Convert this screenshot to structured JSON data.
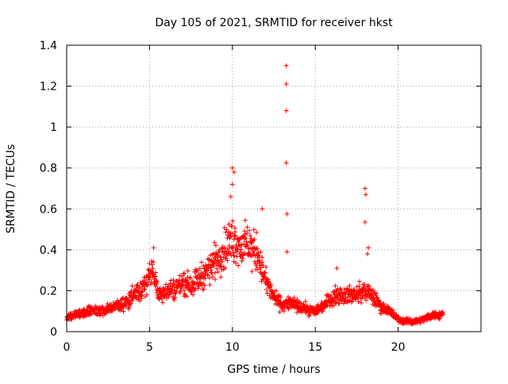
{
  "chart_data": {
    "type": "scatter",
    "title": "Day 105 of 2021, SRMTID for receiver hkst",
    "xlabel": "GPS time / hours",
    "ylabel": "SRMTID / TECUs",
    "xlim": [
      0,
      25
    ],
    "ylim": [
      0,
      1.4
    ],
    "xticks": [
      0,
      5,
      10,
      15,
      20
    ],
    "xtick_labels": [
      "0",
      "5",
      "10",
      "15",
      "20"
    ],
    "yticks": [
      0,
      0.2,
      0.4,
      0.6,
      0.8,
      1,
      1.2,
      1.4
    ],
    "ytick_labels": [
      "0",
      "0.2",
      "0.4",
      "0.6",
      "0.8",
      "1",
      "1.2",
      "1.4"
    ],
    "grid": true,
    "marker": "plus",
    "color": "#ff0000",
    "series": [
      {
        "name": "SRMTID",
        "envelope": [
          [
            0.0,
            0.07
          ],
          [
            0.5,
            0.08
          ],
          [
            1.0,
            0.09
          ],
          [
            1.5,
            0.1
          ],
          [
            2.0,
            0.1
          ],
          [
            2.5,
            0.11
          ],
          [
            3.0,
            0.13
          ],
          [
            3.5,
            0.14
          ],
          [
            4.0,
            0.17
          ],
          [
            4.5,
            0.2
          ],
          [
            5.0,
            0.28
          ],
          [
            5.2,
            0.3
          ],
          [
            5.5,
            0.19
          ],
          [
            6.0,
            0.2
          ],
          [
            6.5,
            0.21
          ],
          [
            7.0,
            0.24
          ],
          [
            7.5,
            0.23
          ],
          [
            8.0,
            0.26
          ],
          [
            8.5,
            0.3
          ],
          [
            9.0,
            0.35
          ],
          [
            9.5,
            0.4
          ],
          [
            10.0,
            0.45
          ],
          [
            10.5,
            0.42
          ],
          [
            11.0,
            0.42
          ],
          [
            11.5,
            0.38
          ],
          [
            12.0,
            0.25
          ],
          [
            12.5,
            0.17
          ],
          [
            13.0,
            0.13
          ],
          [
            13.5,
            0.14
          ],
          [
            14.0,
            0.12
          ],
          [
            14.5,
            0.11
          ],
          [
            15.0,
            0.1
          ],
          [
            15.5,
            0.13
          ],
          [
            16.0,
            0.17
          ],
          [
            16.5,
            0.18
          ],
          [
            17.0,
            0.18
          ],
          [
            17.5,
            0.18
          ],
          [
            18.0,
            0.2
          ],
          [
            18.5,
            0.17
          ],
          [
            19.0,
            0.12
          ],
          [
            19.5,
            0.1
          ],
          [
            20.0,
            0.06
          ],
          [
            20.5,
            0.05
          ],
          [
            21.0,
            0.05
          ],
          [
            21.5,
            0.06
          ],
          [
            22.0,
            0.08
          ],
          [
            22.5,
            0.08
          ],
          [
            22.7,
            0.09
          ]
        ],
        "spikes": [
          [
            13.25,
            1.3
          ],
          [
            13.25,
            1.21
          ],
          [
            13.25,
            1.08
          ],
          [
            13.25,
            0.825
          ],
          [
            13.3,
            0.575
          ],
          [
            13.3,
            0.39
          ],
          [
            10.0,
            0.8
          ],
          [
            10.1,
            0.78
          ],
          [
            10.0,
            0.72
          ],
          [
            18.0,
            0.7
          ],
          [
            18.05,
            0.67
          ],
          [
            18.0,
            0.535
          ],
          [
            18.2,
            0.41
          ],
          [
            18.15,
            0.38
          ],
          [
            5.25,
            0.41
          ],
          [
            11.8,
            0.6
          ],
          [
            9.9,
            0.66
          ],
          [
            16.3,
            0.31
          ]
        ]
      }
    ]
  }
}
